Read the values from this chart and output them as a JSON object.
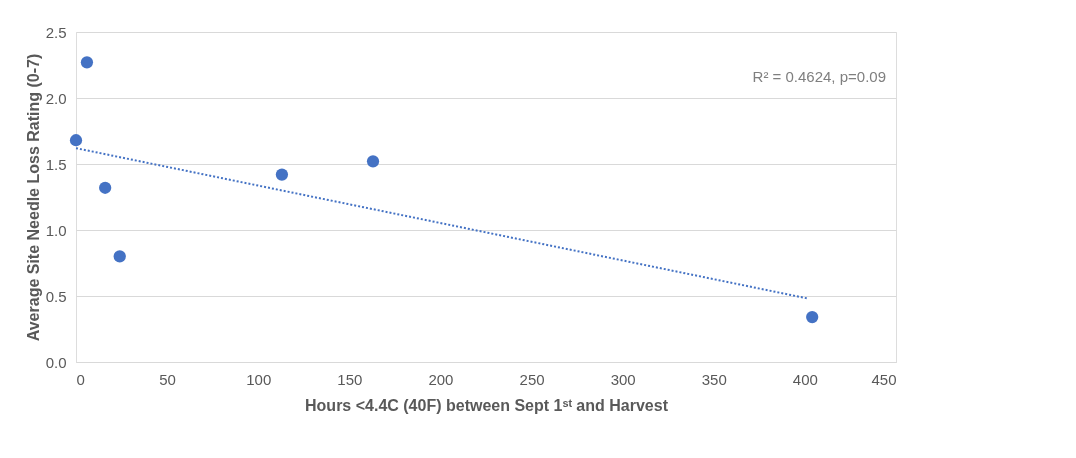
{
  "chart_data": {
    "type": "scatter",
    "xlabel": "Hours <4.4C (40F) between Sept 1ˢᵗ and Harvest",
    "ylabel": "Average Site Needle Loss Rating (0-7)",
    "series": [
      {
        "color": "#4472c4",
        "x": [
          6,
          0,
          16,
          24,
          113,
          163,
          404
        ],
        "values": [
          2.27,
          1.68,
          1.32,
          0.8,
          1.42,
          1.52,
          0.34
        ],
        "marker": "circle"
      },
      {
        "type": "line",
        "color": "#4472c4",
        "x": [
          0,
          402
        ],
        "values": [
          1.62,
          0.48
        ],
        "line_style": "dotted",
        "marker": "none"
      }
    ],
    "annotations": [
      "R² = 0.4624, p=0.09"
    ],
    "xlim": [
      0,
      450
    ],
    "xticks": [
      0,
      50,
      100,
      150,
      200,
      250,
      300,
      350,
      400,
      450
    ],
    "ylim": [
      0,
      2.5
    ],
    "yticks": [
      {
        "value": 0,
        "label": "0.0"
      },
      {
        "value": 0.5,
        "label": "0.5"
      },
      {
        "value": 1,
        "label": "1.0"
      },
      {
        "value": 1.5,
        "label": "1.5"
      },
      {
        "value": 2,
        "label": "2.0"
      },
      {
        "value": 2.5,
        "label": "2.5"
      }
    ],
    "grid": "y"
  }
}
